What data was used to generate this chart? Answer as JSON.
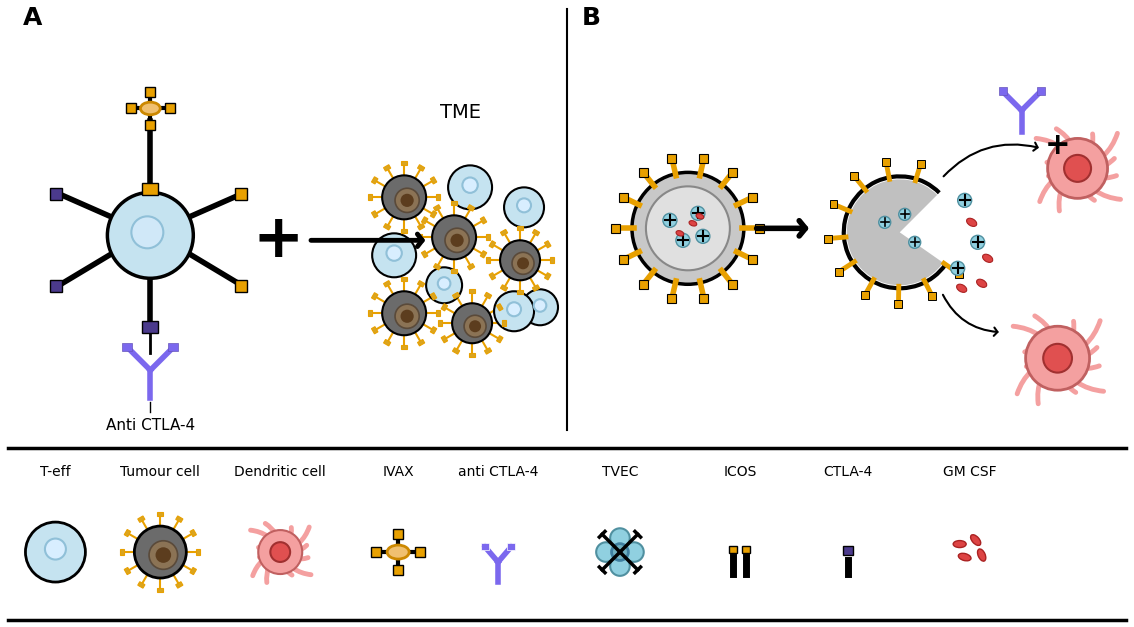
{
  "panel_A_label": "A",
  "panel_B_label": "B",
  "tme_label": "TME",
  "anti_ctla4_label": "Anti CTLA-4",
  "legend_labels": [
    "T-eff",
    "Tumour cell",
    "Dendritic cell",
    "IVAX",
    "anti CTLA-4",
    "TVEC",
    "ICOS",
    "CTLA-4",
    "GM CSF"
  ],
  "colors": {
    "cell_blue": "#C5E3F0",
    "dark_gold": "#E8A000",
    "gold": "#DAA520",
    "dark_purple": "#4B3A8C",
    "purple_ab": "#7B68EE",
    "black": "#000000",
    "white": "#FFFFFF",
    "pink_dc": "#F4A0A0",
    "pink_dc_edge": "#C06060",
    "pink_nucleus": "#E05050",
    "pink_nucleus_edge": "#A03030",
    "tumor_body": "#6B6B6B",
    "tumor_inner": "#8B7355",
    "tumor_core": "#5C3D1E",
    "ivax_fill": "#F0C070",
    "ivax_edge": "#CC8800",
    "tvec_fill": "#90D0E0",
    "tvec_edge": "#5090A0",
    "tvec_center": "#70B0C0",
    "tvec_center_edge": "#4080A0",
    "red_bean": "#DD4444",
    "red_bean_edge": "#AA2222",
    "gray_virus": "#C8C8C8",
    "gray_inner": "#E0E0E0",
    "gray_edge": "#888888",
    "broken_fill": "#C0C0C0",
    "nucleus_blue": "#D0E8F8",
    "nucleus_blue_edge": "#90C0D8",
    "background": "#FFFFFF"
  }
}
